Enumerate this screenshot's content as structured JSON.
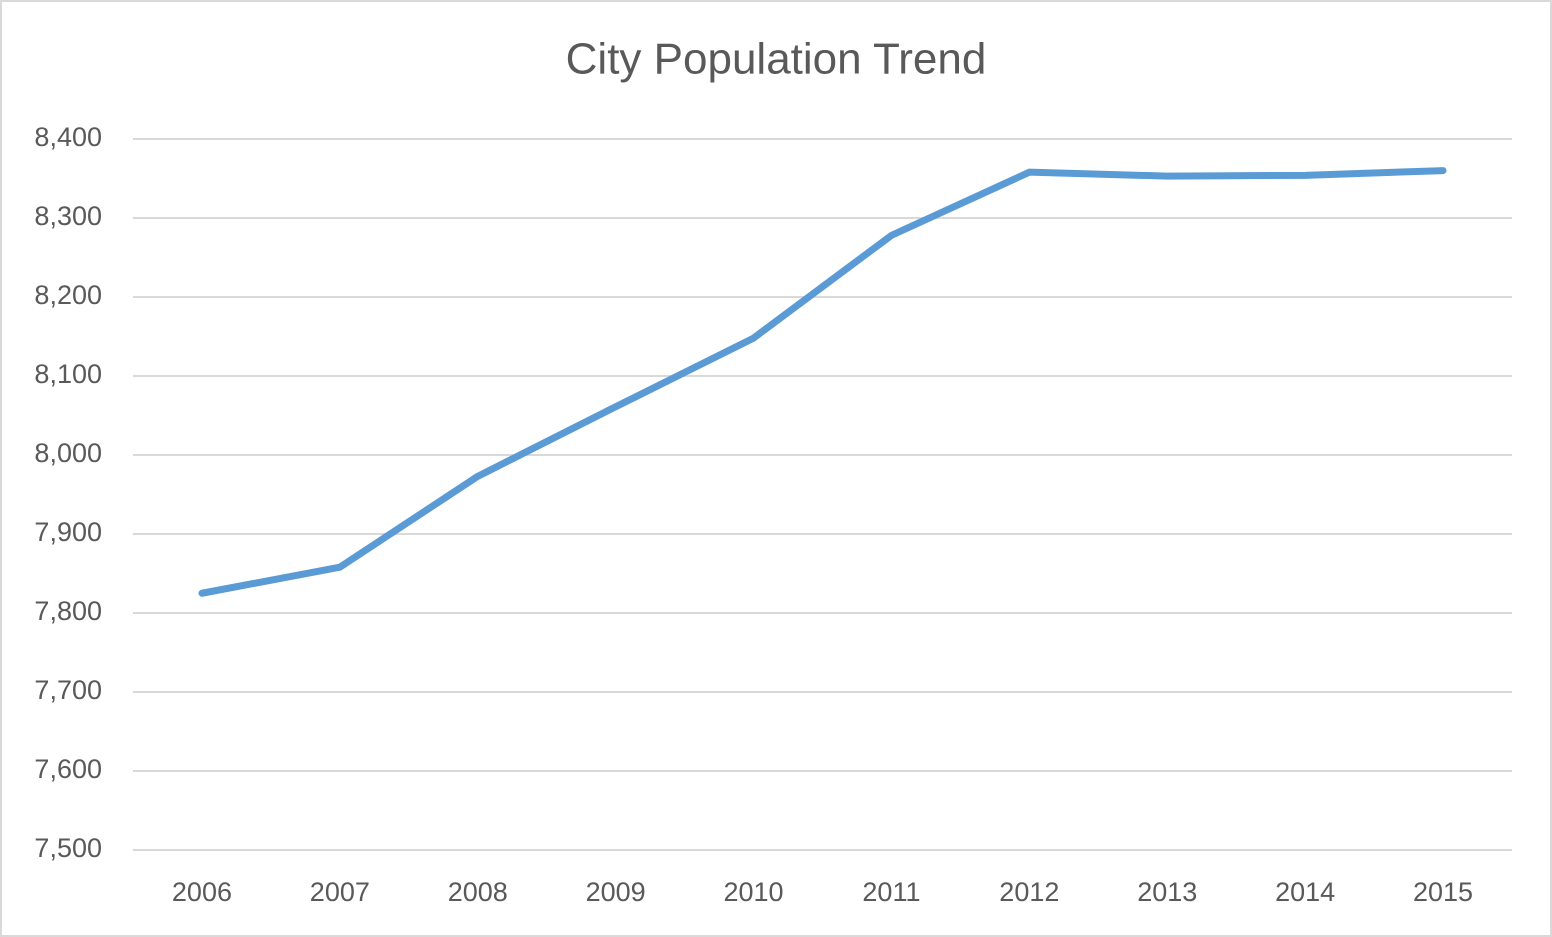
{
  "chart_data": {
    "type": "line",
    "title": "City Population Trend",
    "categories": [
      "2006",
      "2007",
      "2008",
      "2009",
      "2010",
      "2011",
      "2012",
      "2013",
      "2014",
      "2015"
    ],
    "values": [
      7825,
      7858,
      7973,
      8061,
      8148,
      8278,
      8358,
      8353,
      8354,
      8360
    ],
    "color": "#5b9bd5",
    "ylim": [
      7500,
      8400
    ],
    "yticks": [
      {
        "value": 7500,
        "label": "7,500"
      },
      {
        "value": 7600,
        "label": "7,600"
      },
      {
        "value": 7700,
        "label": "7,700"
      },
      {
        "value": 7800,
        "label": "7,800"
      },
      {
        "value": 7900,
        "label": "7,900"
      },
      {
        "value": 8000,
        "label": "8,000"
      },
      {
        "value": 8100,
        "label": "8,100"
      },
      {
        "value": 8200,
        "label": "8,200"
      },
      {
        "value": 8300,
        "label": "8,300"
      },
      {
        "value": 8400,
        "label": "8,400"
      }
    ],
    "grid": true
  }
}
